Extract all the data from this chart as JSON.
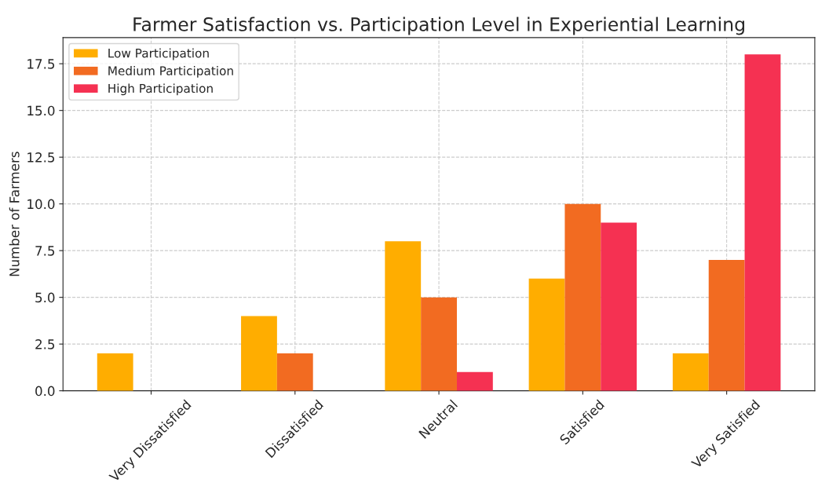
{
  "chart_data": {
    "type": "bar",
    "title": "Farmer Satisfaction vs. Participation Level in Experiential Learning",
    "ylabel": "Number of Farmers",
    "categories": [
      "Very Dissatisfied",
      "Dissatisfied",
      "Neutral",
      "Satisfied",
      "Very Satisfied"
    ],
    "series": [
      {
        "name": "Low Participation",
        "color": "#ffad00",
        "values": [
          2,
          4,
          8,
          6,
          2
        ]
      },
      {
        "name": "Medium Participation",
        "color": "#f26b21",
        "values": [
          0,
          2,
          5,
          10,
          7
        ]
      },
      {
        "name": "High Participation",
        "color": "#f53152",
        "values": [
          0,
          0,
          1,
          9,
          18
        ]
      }
    ],
    "ylim": [
      0,
      18.9
    ],
    "yticks": [
      {
        "value": 0,
        "label": "0.0"
      },
      2.5,
      {
        "value": 5,
        "label": "5.0"
      },
      7.5,
      {
        "value": 10,
        "label": "10.0"
      },
      12.5,
      {
        "value": 15,
        "label": "15.0"
      },
      17.5
    ],
    "grid": true,
    "legend": "top left"
  }
}
